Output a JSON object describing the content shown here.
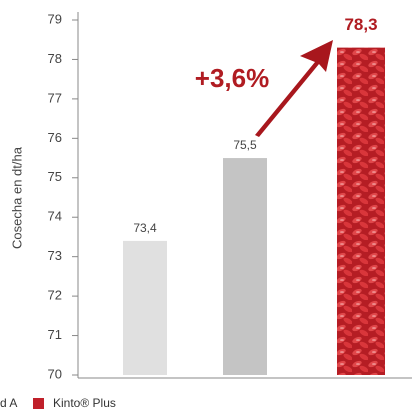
{
  "chart_data": {
    "type": "bar",
    "y_label": "Cosecha en dt/ha",
    "categories": [
      null,
      null,
      null
    ],
    "values": [
      73.4,
      75.5,
      78.3
    ],
    "value_labels": [
      "73,4",
      "75,5",
      "78,3"
    ],
    "colors": [
      "#e0e0e0",
      "#c4c4c4",
      "#c0202a"
    ],
    "ylim": [
      70,
      79
    ],
    "yticks": [
      70,
      71,
      72,
      73,
      74,
      75,
      76,
      77,
      78,
      79
    ],
    "annotation": "+3,6%",
    "legend": [
      {
        "label": "d A",
        "color": "#c4c4c4"
      },
      {
        "label": "Kinto® Plus",
        "color": "#c0202a"
      }
    ]
  }
}
